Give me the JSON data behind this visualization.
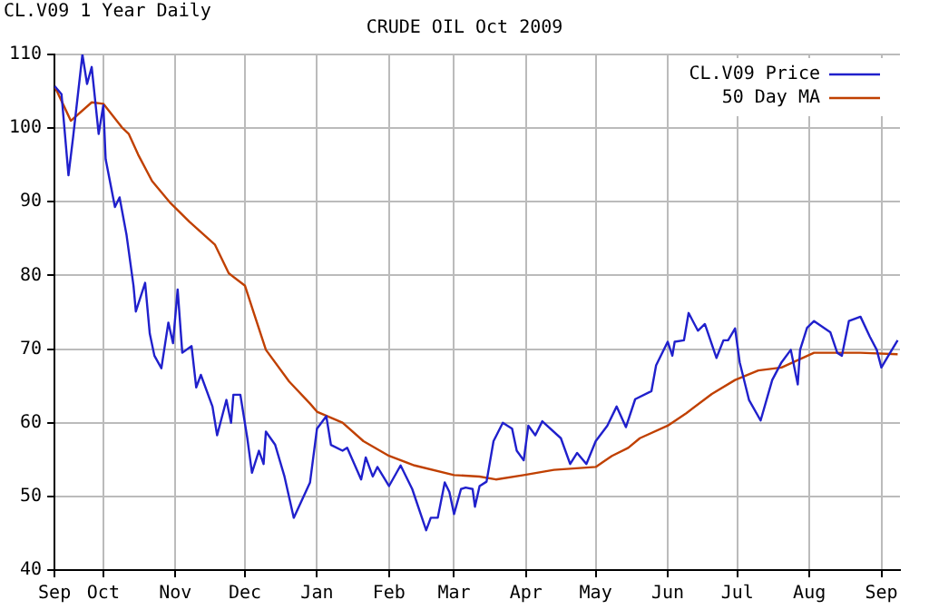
{
  "chart_data": {
    "type": "line",
    "title": "CRUDE OIL Oct 2009",
    "subtitle": "CL.V09 1 Year Daily",
    "xlim": [
      "2008-09-10",
      "2009-09-09"
    ],
    "xticks": [
      {
        "value": "2008-09-10",
        "label": "Sep"
      },
      {
        "value": "2008-10-01",
        "label": "Oct"
      },
      {
        "value": "2008-11-01",
        "label": "Nov"
      },
      {
        "value": "2008-12-01",
        "label": "Dec"
      },
      {
        "value": "2009-01-01",
        "label": "Jan"
      },
      {
        "value": "2009-02-01",
        "label": "Feb"
      },
      {
        "value": "2009-03-01",
        "label": "Mar"
      },
      {
        "value": "2009-04-01",
        "label": "Apr"
      },
      {
        "value": "2009-05-01",
        "label": "May"
      },
      {
        "value": "2009-06-01",
        "label": "Jun"
      },
      {
        "value": "2009-07-01",
        "label": "Jul"
      },
      {
        "value": "2009-08-01",
        "label": "Aug"
      },
      {
        "value": "2009-09-01",
        "label": "Sep"
      }
    ],
    "ylim": [
      40,
      110
    ],
    "yticks": [
      40,
      50,
      60,
      70,
      80,
      90,
      100,
      110
    ],
    "grid": true,
    "legend": "top right",
    "marker": "none",
    "line_style": "solid",
    "series": [
      {
        "name": "CL.V09 Price",
        "color": "#2020cc",
        "x": [
          "2008-09-10",
          "2008-09-13",
          "2008-09-16",
          "2008-09-18",
          "2008-09-22",
          "2008-09-24",
          "2008-09-26",
          "2008-09-29",
          "2008-10-01",
          "2008-10-02",
          "2008-10-06",
          "2008-10-08",
          "2008-10-11",
          "2008-10-14",
          "2008-10-15",
          "2008-10-19",
          "2008-10-21",
          "2008-10-23",
          "2008-10-26",
          "2008-10-29",
          "2008-10-31",
          "2008-11-02",
          "2008-11-04",
          "2008-11-08",
          "2008-11-10",
          "2008-11-12",
          "2008-11-17",
          "2008-11-19",
          "2008-11-23",
          "2008-11-25",
          "2008-11-26",
          "2008-11-29",
          "2008-12-02",
          "2008-12-04",
          "2008-12-07",
          "2008-12-09",
          "2008-12-10",
          "2008-12-14",
          "2008-12-18",
          "2008-12-22",
          "2008-12-29",
          "2009-01-01",
          "2009-01-05",
          "2009-01-07",
          "2009-01-12",
          "2009-01-14",
          "2009-01-20",
          "2009-01-22",
          "2009-01-25",
          "2009-01-27",
          "2009-02-01",
          "2009-02-06",
          "2009-02-11",
          "2009-02-17",
          "2009-02-19",
          "2009-02-22",
          "2009-02-25",
          "2009-02-27",
          "2009-03-01",
          "2009-03-04",
          "2009-03-06",
          "2009-03-09",
          "2009-03-10",
          "2009-03-12",
          "2009-03-15",
          "2009-03-18",
          "2009-03-22",
          "2009-03-26",
          "2009-03-28",
          "2009-03-31",
          "2009-04-02",
          "2009-04-05",
          "2009-04-08",
          "2009-04-16",
          "2009-04-20",
          "2009-04-23",
          "2009-04-27",
          "2009-05-01",
          "2009-05-06",
          "2009-05-10",
          "2009-05-14",
          "2009-05-18",
          "2009-05-25",
          "2009-05-27",
          "2009-06-01",
          "2009-06-03",
          "2009-06-04",
          "2009-06-08",
          "2009-06-10",
          "2009-06-14",
          "2009-06-17",
          "2009-06-22",
          "2009-06-25",
          "2009-06-27",
          "2009-06-30",
          "2009-07-02",
          "2009-07-06",
          "2009-07-11",
          "2009-07-16",
          "2009-07-20",
          "2009-07-24",
          "2009-07-27",
          "2009-07-28",
          "2009-07-31",
          "2009-08-03",
          "2009-08-10",
          "2009-08-13",
          "2009-08-15",
          "2009-08-18",
          "2009-08-23",
          "2009-08-27",
          "2009-08-30",
          "2009-09-01",
          "2009-09-04",
          "2009-09-08"
        ],
        "values": [
          105.7,
          104.6,
          93.6,
          98.8,
          110,
          106,
          108.3,
          99.2,
          103.1,
          95.8,
          89.3,
          90.6,
          85.5,
          78.6,
          75.1,
          79,
          72.1,
          69.1,
          67.4,
          73.6,
          70.8,
          78.1,
          69.5,
          70.4,
          64.8,
          66.5,
          62.2,
          58.3,
          63.1,
          60,
          63.8,
          63.8,
          57.9,
          53.2,
          56.2,
          54.4,
          58.8,
          57,
          52.7,
          47.1,
          51.9,
          59.2,
          60.9,
          57,
          56.2,
          56.6,
          52.3,
          55.3,
          52.7,
          54,
          51.4,
          54.2,
          51,
          45.4,
          47.1,
          47.1,
          51.9,
          50.6,
          47.6,
          51,
          51.2,
          51,
          48.6,
          51.4,
          52,
          57.5,
          60,
          59.2,
          56.2,
          54.9,
          59.6,
          58.3,
          60.2,
          57.9,
          54.4,
          55.9,
          54.4,
          57.5,
          59.6,
          62.2,
          59.4,
          63.2,
          64.3,
          67.8,
          71,
          69.1,
          71,
          71.2,
          74.9,
          72.5,
          73.4,
          68.8,
          71.2,
          71.2,
          72.8,
          68.2,
          63.1,
          60.3,
          65.8,
          68.2,
          69.9,
          65.2,
          69.9,
          72.9,
          73.8,
          72.3,
          69.5,
          69.1,
          73.8,
          74.4,
          71.7,
          69.9,
          67.5,
          69.1,
          71.2
        ]
      },
      {
        "name": "50 Day MA",
        "color": "#c04000",
        "x": [
          "2008-09-10",
          "2008-09-13",
          "2008-09-17",
          "2008-09-26",
          "2008-10-01",
          "2008-10-09",
          "2008-10-12",
          "2008-10-16",
          "2008-10-22",
          "2008-10-30",
          "2008-11-07",
          "2008-11-18",
          "2008-11-24",
          "2008-12-01",
          "2008-12-05",
          "2008-12-10",
          "2008-12-20",
          "2008-12-29",
          "2009-01-01",
          "2009-01-12",
          "2009-01-21",
          "2009-02-01",
          "2009-02-12",
          "2009-03-01",
          "2009-03-12",
          "2009-03-19",
          "2009-03-31",
          "2009-04-13",
          "2009-05-01",
          "2009-05-08",
          "2009-05-15",
          "2009-05-20",
          "2009-06-01",
          "2009-06-09",
          "2009-06-20",
          "2009-06-30",
          "2009-07-10",
          "2009-07-20",
          "2009-08-03",
          "2009-08-23",
          "2009-09-08"
        ],
        "values": [
          105.7,
          103.7,
          101,
          103.5,
          103.3,
          100.1,
          99.2,
          96.4,
          92.8,
          89.8,
          87.3,
          84.2,
          80.3,
          78.6,
          74.7,
          69.9,
          65.6,
          62.6,
          61.5,
          60,
          57.5,
          55.5,
          54.2,
          52.9,
          52.7,
          52.3,
          52.9,
          53.6,
          54,
          55.5,
          56.6,
          57.9,
          59.6,
          61.3,
          63.9,
          65.8,
          67.1,
          67.5,
          69.5,
          69.5,
          69.3
        ]
      }
    ]
  }
}
